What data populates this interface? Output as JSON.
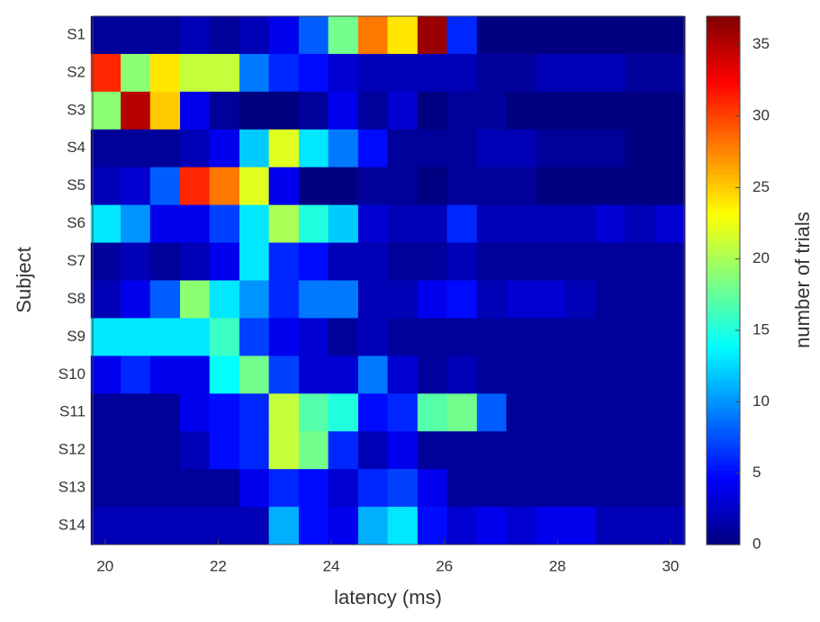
{
  "chart_data": {
    "type": "heatmap",
    "x_label": "latency (ms)",
    "y_label": "Subject",
    "colorbar_label": "number of trials",
    "categories": [
      "S1",
      "S2",
      "S3",
      "S4",
      "S5",
      "S6",
      "S7",
      "S8",
      "S9",
      "S10",
      "S11",
      "S12",
      "S13",
      "S14"
    ],
    "x": [
      20.01,
      20.54,
      21.06,
      21.59,
      22.11,
      22.64,
      23.16,
      23.69,
      24.21,
      24.74,
      25.26,
      25.79,
      26.31,
      26.84,
      27.36,
      27.89,
      28.41,
      28.94,
      29.46,
      29.99
    ],
    "xlim": [
      19.78,
      30.24
    ],
    "xticks": [
      20,
      22,
      24,
      26,
      28,
      30
    ],
    "colormap": "jet",
    "clim": [
      0,
      37
    ],
    "cticks": [
      0,
      5,
      10,
      15,
      20,
      25,
      30,
      35
    ],
    "values": [
      [
        1,
        1,
        1,
        2,
        1,
        2,
        4,
        8,
        18,
        28,
        24,
        36,
        6,
        0,
        0,
        0,
        0,
        0,
        0,
        0
      ],
      [
        31,
        19,
        24,
        21,
        21,
        9,
        6,
        5,
        3,
        2,
        2,
        2,
        2,
        1,
        1,
        2,
        2,
        2,
        1,
        1
      ],
      [
        19,
        35,
        25,
        4,
        1,
        0,
        0,
        1,
        4,
        1,
        3,
        0,
        1,
        1,
        0,
        0,
        0,
        0,
        0,
        0
      ],
      [
        1,
        1,
        1,
        2,
        4,
        12,
        22,
        13,
        9,
        5,
        1,
        1,
        1,
        2,
        2,
        1,
        1,
        1,
        0,
        0
      ],
      [
        2,
        3,
        8,
        31,
        28,
        22,
        4,
        0,
        0,
        1,
        1,
        0,
        1,
        1,
        1,
        0,
        0,
        0,
        0,
        0
      ],
      [
        13,
        10,
        4,
        4,
        7,
        13,
        20,
        15,
        12,
        3,
        2,
        2,
        6,
        2,
        2,
        2,
        2,
        3,
        2,
        3
      ],
      [
        1,
        2,
        1,
        2,
        4,
        13,
        6,
        5,
        2,
        2,
        1,
        1,
        2,
        1,
        1,
        1,
        1,
        1,
        1,
        1
      ],
      [
        2,
        4,
        8,
        19,
        13,
        10,
        6,
        9,
        9,
        2,
        2,
        4,
        5,
        2,
        3,
        3,
        2,
        1,
        1,
        1
      ],
      [
        13,
        13,
        13,
        13,
        16,
        7,
        4,
        3,
        1,
        2,
        1,
        1,
        1,
        1,
        1,
        1,
        1,
        1,
        1,
        1
      ],
      [
        4,
        6,
        4,
        4,
        14,
        18,
        7,
        3,
        3,
        9,
        3,
        1,
        2,
        1,
        1,
        1,
        1,
        1,
        1,
        1
      ],
      [
        1,
        1,
        1,
        4,
        5,
        6,
        21,
        17,
        15,
        5,
        6,
        17,
        18,
        8,
        1,
        1,
        1,
        1,
        1,
        1
      ],
      [
        1,
        1,
        1,
        2,
        5,
        6,
        21,
        18,
        6,
        2,
        4,
        1,
        1,
        1,
        1,
        1,
        1,
        1,
        1,
        1
      ],
      [
        1,
        1,
        1,
        1,
        1,
        4,
        6,
        5,
        3,
        6,
        7,
        4,
        1,
        1,
        1,
        1,
        1,
        1,
        1,
        1
      ],
      [
        2,
        2,
        2,
        2,
        2,
        2,
        11,
        5,
        4,
        11,
        13,
        5,
        3,
        4,
        3,
        4,
        4,
        2,
        2,
        2
      ]
    ]
  }
}
